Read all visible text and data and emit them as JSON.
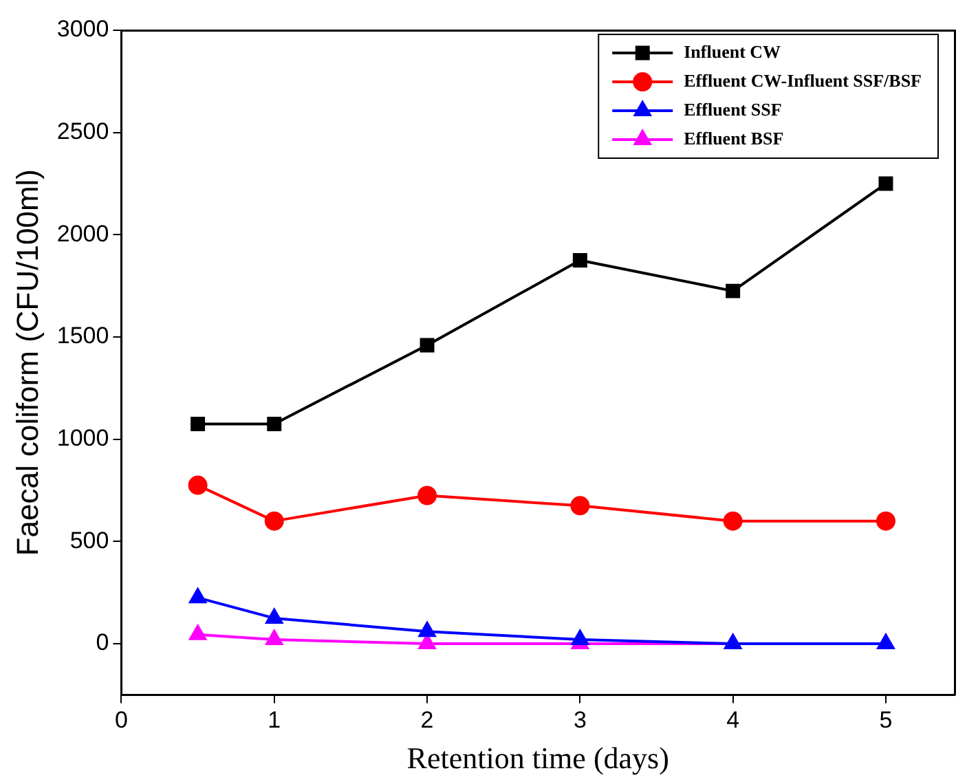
{
  "chart_data": {
    "type": "line",
    "xlabel": "Retention time (days)",
    "ylabel": "Faecal coliform (CFU/100ml)",
    "x": [
      0.5,
      1,
      2,
      3,
      4,
      5
    ],
    "series": [
      {
        "name": "Influent CW",
        "color": "#000000",
        "marker": "square",
        "values": [
          1075,
          1075,
          1460,
          1875,
          1725,
          2250
        ]
      },
      {
        "name": "Effluent CW-Influent SSF/BSF",
        "color": "#ff0000",
        "marker": "circle",
        "values": [
          775,
          600,
          725,
          675,
          600,
          600
        ]
      },
      {
        "name": "Effluent SSF",
        "color": "#0000ff",
        "marker": "triangle",
        "values": [
          225,
          125,
          60,
          20,
          0,
          0
        ]
      },
      {
        "name": "Effluent BSF",
        "color": "#ff00ff",
        "marker": "triangle",
        "values": [
          45,
          20,
          0,
          0,
          0,
          0
        ]
      }
    ],
    "xlim": [
      0,
      5.45
    ],
    "xticks": [
      0,
      1,
      2,
      3,
      4,
      5
    ],
    "ylim": [
      -250,
      3000
    ],
    "yticks": [
      0,
      500,
      1000,
      1500,
      2000,
      2500,
      3000
    ],
    "grid": false,
    "legend": "top right",
    "line_style": "solid"
  }
}
